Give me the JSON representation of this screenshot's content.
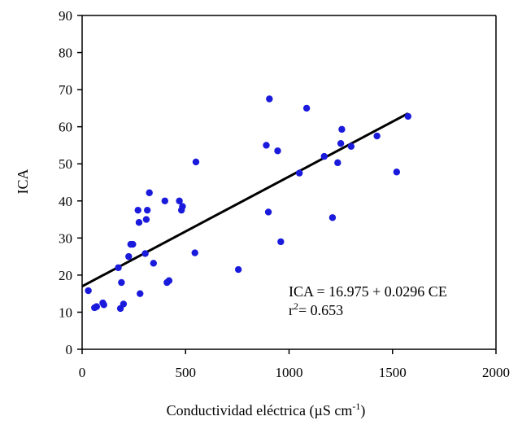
{
  "chart_data": {
    "type": "scatter",
    "title": "",
    "xlabel": "Conductividad eléctrica (µS cm",
    "xlabel_sup": "-1",
    "xlabel_close": ")",
    "ylabel": "ICA",
    "xlim": [
      0,
      2000
    ],
    "ylim": [
      0,
      90
    ],
    "xticks": [
      0,
      500,
      1000,
      1500,
      2000
    ],
    "yticks": [
      0,
      10,
      20,
      30,
      40,
      50,
      60,
      70,
      80,
      90
    ],
    "grid": false,
    "legend": "none",
    "point_color": "#1a1adc",
    "line_color": "#000000",
    "points": [
      [
        30,
        15.8
      ],
      [
        60,
        11.2
      ],
      [
        70,
        11.5
      ],
      [
        100,
        12.5
      ],
      [
        105,
        12.0
      ],
      [
        175,
        22.0
      ],
      [
        185,
        11.0
      ],
      [
        190,
        18.0
      ],
      [
        200,
        12.2
      ],
      [
        225,
        25.0
      ],
      [
        235,
        28.3
      ],
      [
        245,
        28.3
      ],
      [
        270,
        37.5
      ],
      [
        275,
        34.2
      ],
      [
        280,
        15.0
      ],
      [
        305,
        25.8
      ],
      [
        310,
        35.0
      ],
      [
        315,
        37.5
      ],
      [
        325,
        42.2
      ],
      [
        345,
        23.2
      ],
      [
        400,
        40.0
      ],
      [
        410,
        18.0
      ],
      [
        420,
        18.5
      ],
      [
        470,
        40.0
      ],
      [
        480,
        37.5
      ],
      [
        485,
        38.5
      ],
      [
        545,
        26.0
      ],
      [
        550,
        50.5
      ],
      [
        755,
        21.5
      ],
      [
        890,
        55.0
      ],
      [
        900,
        37.0
      ],
      [
        905,
        67.5
      ],
      [
        945,
        53.5
      ],
      [
        960,
        29.0
      ],
      [
        1050,
        47.5
      ],
      [
        1085,
        65.0
      ],
      [
        1170,
        52.0
      ],
      [
        1210,
        35.5
      ],
      [
        1235,
        50.3
      ],
      [
        1250,
        55.5
      ],
      [
        1255,
        59.3
      ],
      [
        1300,
        54.7
      ],
      [
        1425,
        57.5
      ],
      [
        1520,
        47.8
      ],
      [
        1575,
        62.8
      ]
    ],
    "regression": {
      "intercept": 16.975,
      "slope": 0.0296,
      "x_range": [
        0,
        1575
      ]
    },
    "annotations": {
      "equation": "ICA = 16.975 + 0.0296 CE",
      "r2_prefix": "r",
      "r2_sup": "2",
      "r2_value": "= 0.653"
    }
  }
}
